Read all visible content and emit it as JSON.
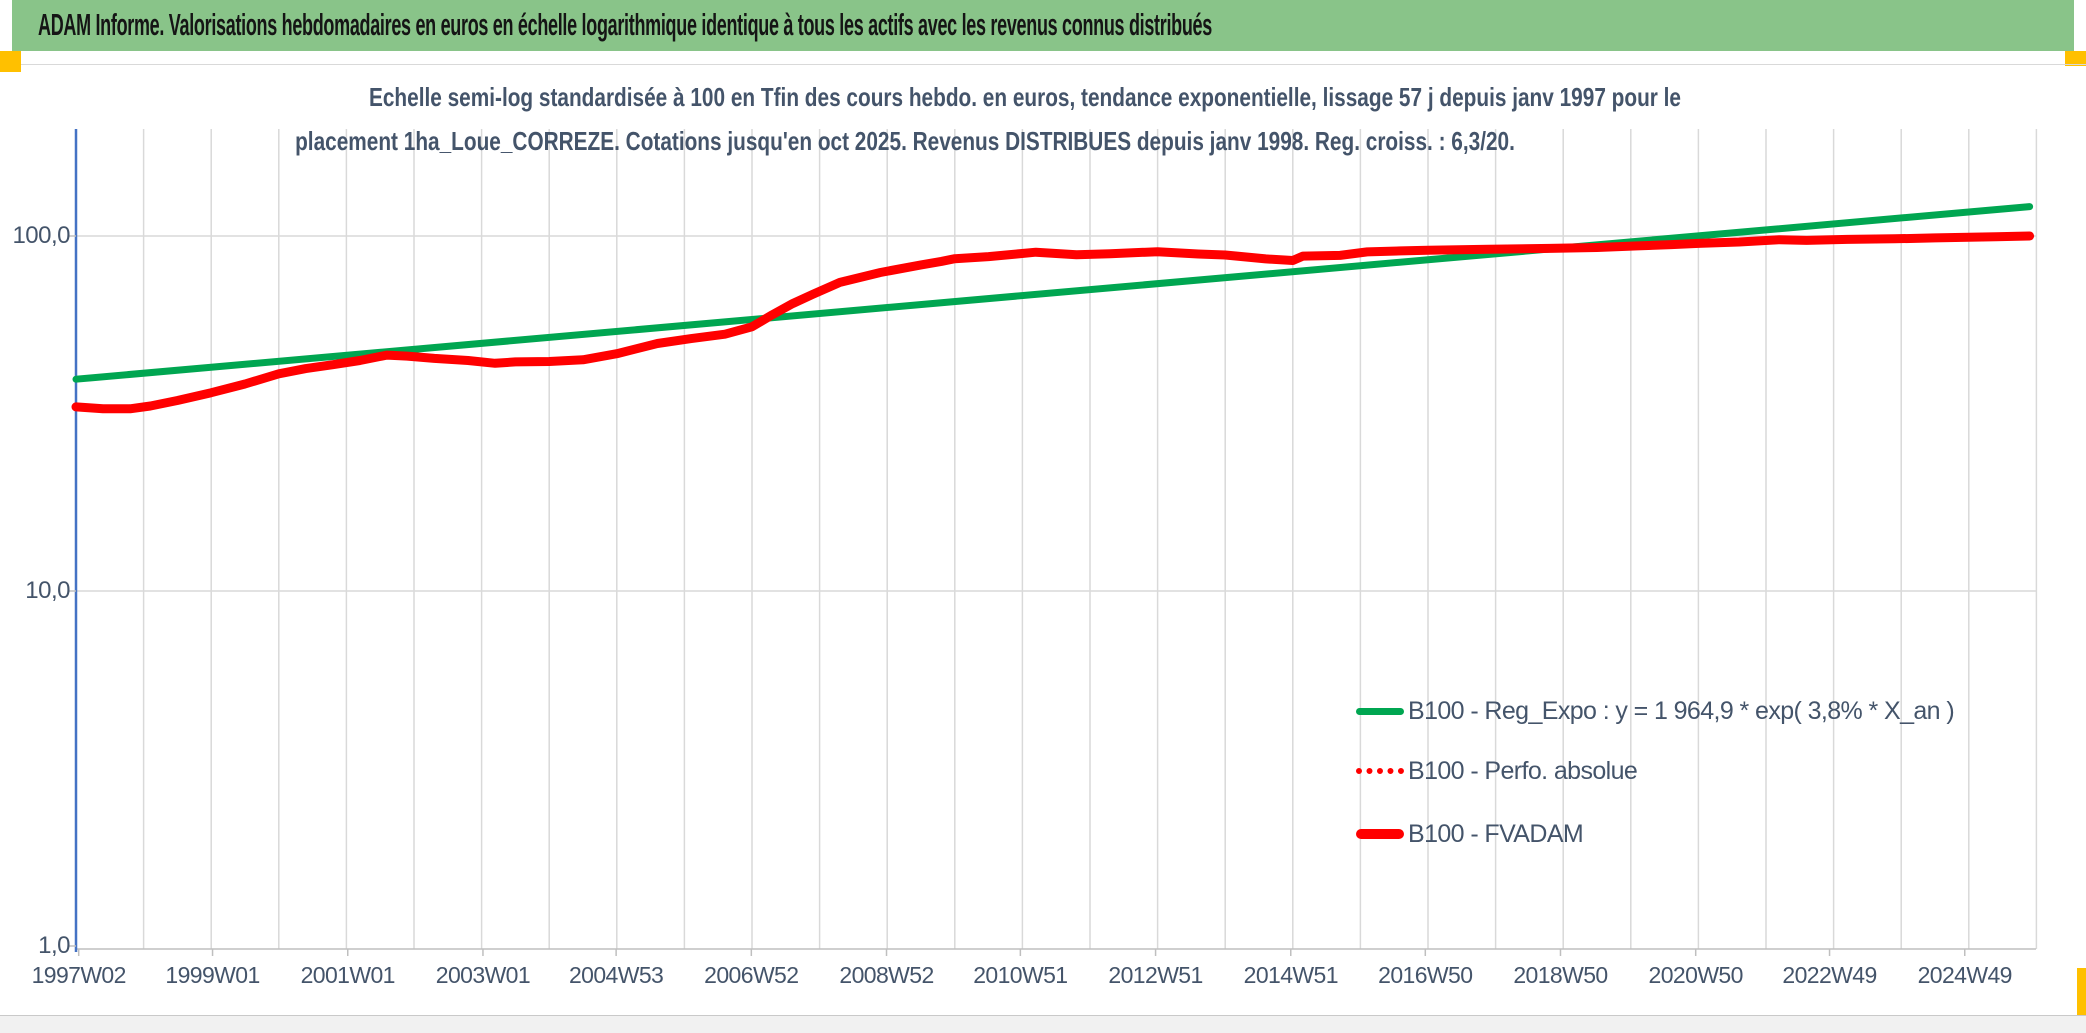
{
  "header": {
    "title": "ADAM Informe. Valorisations hebdomadaires en euros en échelle logarithmique identique à tous les actifs avec les revenus connus distribués"
  },
  "accents": {
    "header_green": "#89C489",
    "corner_orange": "#FFC000",
    "axis_blue": "#4472C4",
    "gridline_gray": "#D9D9D9",
    "axis_gray": "#BFBFBF",
    "text_navy": "#44546A",
    "line_green": "#00A651",
    "line_red": "#FF0000"
  },
  "chart_data": {
    "type": "line",
    "subtitle_line1": "Echelle semi-log standardisée à 100 en Tfin des cours hebdo. en euros, tendance exponentielle, lissage 57 j depuis janv 1997 pour le",
    "subtitle_line2": "placement 1ha_Loue_CORREZE. Cotations jusqu'en oct 2025. Revenus DISTRIBUES depuis janv 1998. Reg. croiss. : 6,3/20.",
    "y_axis": {
      "scale": "log",
      "range": [
        1.0,
        200.0
      ],
      "ticks": [
        {
          "value": 100.0,
          "label": "100,0"
        },
        {
          "value": 10.0,
          "label": "10,0"
        },
        {
          "value": 1.0,
          "label": "1,0"
        }
      ]
    },
    "x_axis": {
      "unit": "ISO week",
      "ticks": [
        {
          "label": "1997W02",
          "year": 1997.04
        },
        {
          "label": "1999W01",
          "year": 1999.02
        },
        {
          "label": "2001W01",
          "year": 2001.02
        },
        {
          "label": "2003W01",
          "year": 2003.02
        },
        {
          "label": "2004W53",
          "year": 2004.99
        },
        {
          "label": "2006W52",
          "year": 2006.99
        },
        {
          "label": "2008W52",
          "year": 2008.99
        },
        {
          "label": "2010W51",
          "year": 2010.97
        },
        {
          "label": "2012W51",
          "year": 2012.97
        },
        {
          "label": "2014W51",
          "year": 2014.97
        },
        {
          "label": "2016W50",
          "year": 2016.96
        },
        {
          "label": "2018W50",
          "year": 2018.96
        },
        {
          "label": "2020W50",
          "year": 2020.96
        },
        {
          "label": "2022W49",
          "year": 2022.94
        },
        {
          "label": "2024W49",
          "year": 2024.94
        }
      ],
      "gridline_years": {
        "from": 1998,
        "to": 2026,
        "step": 1
      }
    },
    "fvadam_points": [
      [
        1997.0,
        33.0
      ],
      [
        1997.4,
        32.6
      ],
      [
        1997.8,
        32.6
      ],
      [
        1998.1,
        33.2
      ],
      [
        1998.5,
        34.4
      ],
      [
        1999.0,
        36.2
      ],
      [
        1999.5,
        38.3
      ],
      [
        2000.0,
        40.9
      ],
      [
        2000.4,
        42.3
      ],
      [
        2000.8,
        43.4
      ],
      [
        2001.2,
        44.6
      ],
      [
        2001.6,
        46.2
      ],
      [
        2001.9,
        45.9
      ],
      [
        2002.3,
        45.2
      ],
      [
        2002.8,
        44.6
      ],
      [
        2003.2,
        43.8
      ],
      [
        2003.5,
        44.2
      ],
      [
        2004.0,
        44.3
      ],
      [
        2004.5,
        44.8
      ],
      [
        2005.0,
        46.6
      ],
      [
        2005.6,
        49.8
      ],
      [
        2006.1,
        51.4
      ],
      [
        2006.6,
        52.9
      ],
      [
        2007.0,
        55.5
      ],
      [
        2007.3,
        60.0
      ],
      [
        2007.6,
        64.5
      ],
      [
        2007.9,
        68.5
      ],
      [
        2008.3,
        74.0
      ],
      [
        2008.9,
        78.9
      ],
      [
        2009.5,
        82.9
      ],
      [
        2009.8,
        84.8
      ],
      [
        2010.0,
        86.3
      ],
      [
        2010.5,
        87.5
      ],
      [
        2010.9,
        88.9
      ],
      [
        2011.2,
        90.0
      ],
      [
        2011.8,
        88.6
      ],
      [
        2012.3,
        89.1
      ],
      [
        2013.0,
        90.3
      ],
      [
        2013.6,
        89.0
      ],
      [
        2014.0,
        88.4
      ],
      [
        2014.6,
        86.2
      ],
      [
        2015.0,
        85.3
      ],
      [
        2015.15,
        87.8
      ],
      [
        2015.7,
        88.2
      ],
      [
        2016.1,
        90.2
      ],
      [
        2016.6,
        90.8
      ],
      [
        2017.0,
        91.2
      ],
      [
        2017.9,
        91.8
      ],
      [
        2018.8,
        92.3
      ],
      [
        2019.5,
        92.8
      ],
      [
        2020.1,
        93.8
      ],
      [
        2020.6,
        94.6
      ],
      [
        2021.0,
        95.3
      ],
      [
        2021.6,
        96.2
      ],
      [
        2022.2,
        97.6
      ],
      [
        2022.6,
        97.2
      ],
      [
        2023.2,
        97.8
      ],
      [
        2023.9,
        98.2
      ],
      [
        2024.5,
        98.8
      ],
      [
        2025.0,
        99.2
      ],
      [
        2025.4,
        99.5
      ],
      [
        2025.9,
        100.0
      ]
    ],
    "series": [
      {
        "name": "B100 - Reg_Expo : y = 1 964,9 * exp( 3,8% *  X_an )",
        "color": "#00A651",
        "style": "solid",
        "stroke_width": 7,
        "points": [
          [
            1997.0,
            39.5
          ],
          [
            2025.9,
            121.0
          ]
        ]
      },
      {
        "name": "B100 - Perfo. absolue",
        "color": "#FF0000",
        "style": "dotted",
        "stroke_width": 5,
        "points_key": "fvadam_points",
        "note": "coincides with B100 - FVADAM, hidden beneath it"
      },
      {
        "name": "B100 - FVADAM",
        "color": "#FF0000",
        "style": "solid",
        "stroke_width": 9,
        "points_key": "fvadam_points"
      }
    ]
  },
  "legend": {
    "items": [
      {
        "label": "B100 - Reg_Expo : y = 1 964,9 * exp( 3,8% *  X_an )",
        "color": "#00A651",
        "style": "solid"
      },
      {
        "label": "B100 - Perfo. absolue",
        "color": "#FF0000",
        "style": "dotted"
      },
      {
        "label": "B100 - FVADAM",
        "color": "#FF0000",
        "style": "solid"
      }
    ]
  }
}
